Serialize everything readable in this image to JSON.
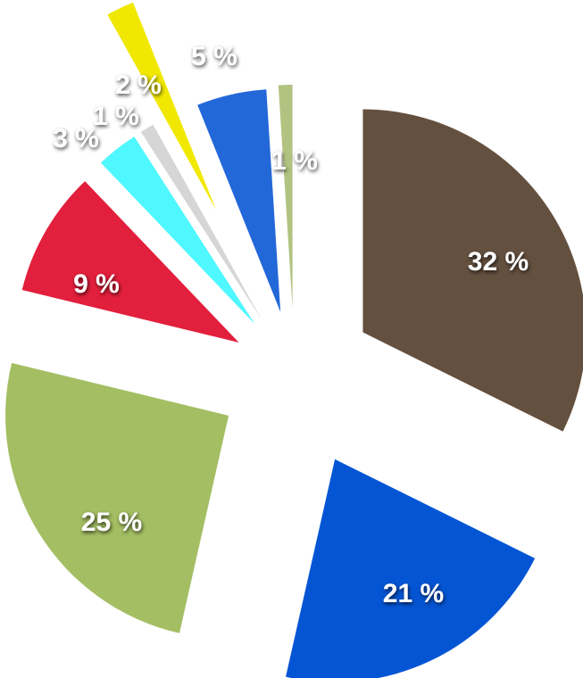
{
  "chart_data": {
    "type": "pie",
    "values": [
      32,
      21,
      25,
      9,
      3,
      1,
      2,
      5,
      1
    ],
    "value_labels": [
      "32 %",
      "21 %",
      "25 %",
      "9 %",
      "3 %",
      "1 %",
      "2 %",
      "5 %",
      "1 %"
    ],
    "colors": [
      "#64503f",
      "#0455d4",
      "#a4be63",
      "#e21f3c",
      "#4ff7ff",
      "#d6d6d6",
      "#f0e800",
      "#2368d8",
      "#b2c381"
    ]
  }
}
